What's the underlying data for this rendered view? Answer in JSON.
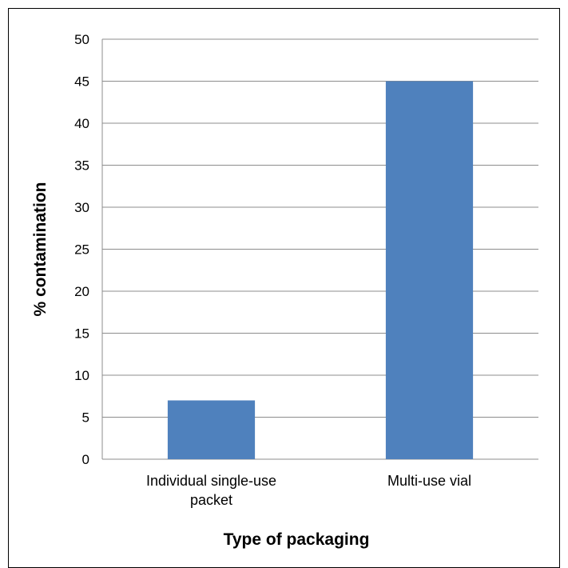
{
  "chart_data": {
    "type": "bar",
    "categories": [
      "Individual single-use packet",
      "Multi-use vial"
    ],
    "category_lines": [
      [
        "Individual single-use",
        "packet"
      ],
      [
        "Multi-use vial"
      ]
    ],
    "values": [
      7,
      45
    ],
    "title": "",
    "xlabel": "Type of packaging",
    "ylabel": "% contamination",
    "ylim": [
      0,
      50
    ],
    "yticks": [
      0,
      5,
      10,
      15,
      20,
      25,
      30,
      35,
      40,
      45,
      50
    ],
    "grid": true,
    "legend": "none",
    "bar_color": "#4f81bd",
    "grid_color": "#8c8c8c"
  }
}
